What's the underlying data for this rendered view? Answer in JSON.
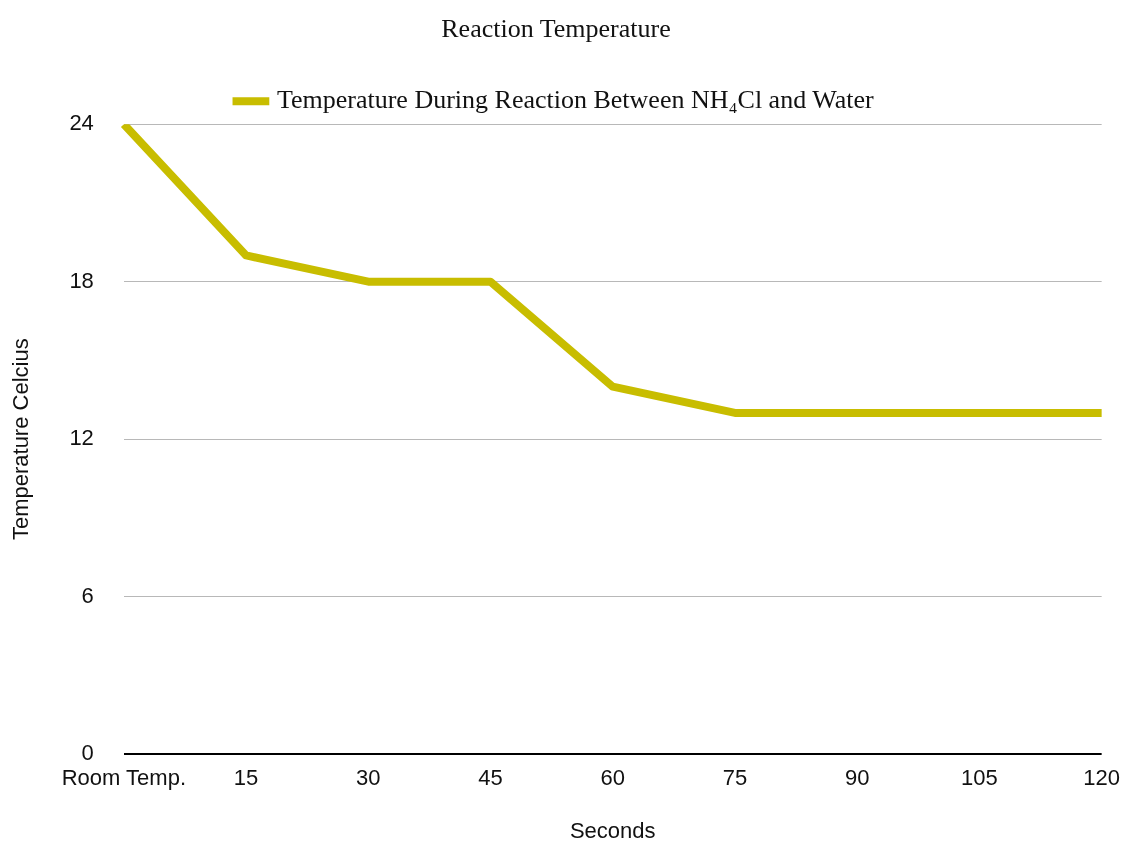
{
  "chart_data": {
    "type": "line",
    "title": "Reaction Temperature",
    "xlabel": "Seconds",
    "ylabel": "Temperature Celcius",
    "categories": [
      "Room Temp.",
      "15",
      "30",
      "45",
      "60",
      "75",
      "90",
      "105",
      "120"
    ],
    "series": [
      {
        "name": "Temperature During Reaction Between NH₄Cl and Water",
        "color": "#c8bd00",
        "values": [
          24,
          19,
          18,
          18,
          14,
          13,
          13,
          13,
          13
        ]
      }
    ],
    "ylim": [
      0,
      24
    ],
    "yticks": [
      0,
      6,
      12,
      18,
      24
    ],
    "grid": "y",
    "legend": "top",
    "marker": "none",
    "line_style": "solid"
  }
}
